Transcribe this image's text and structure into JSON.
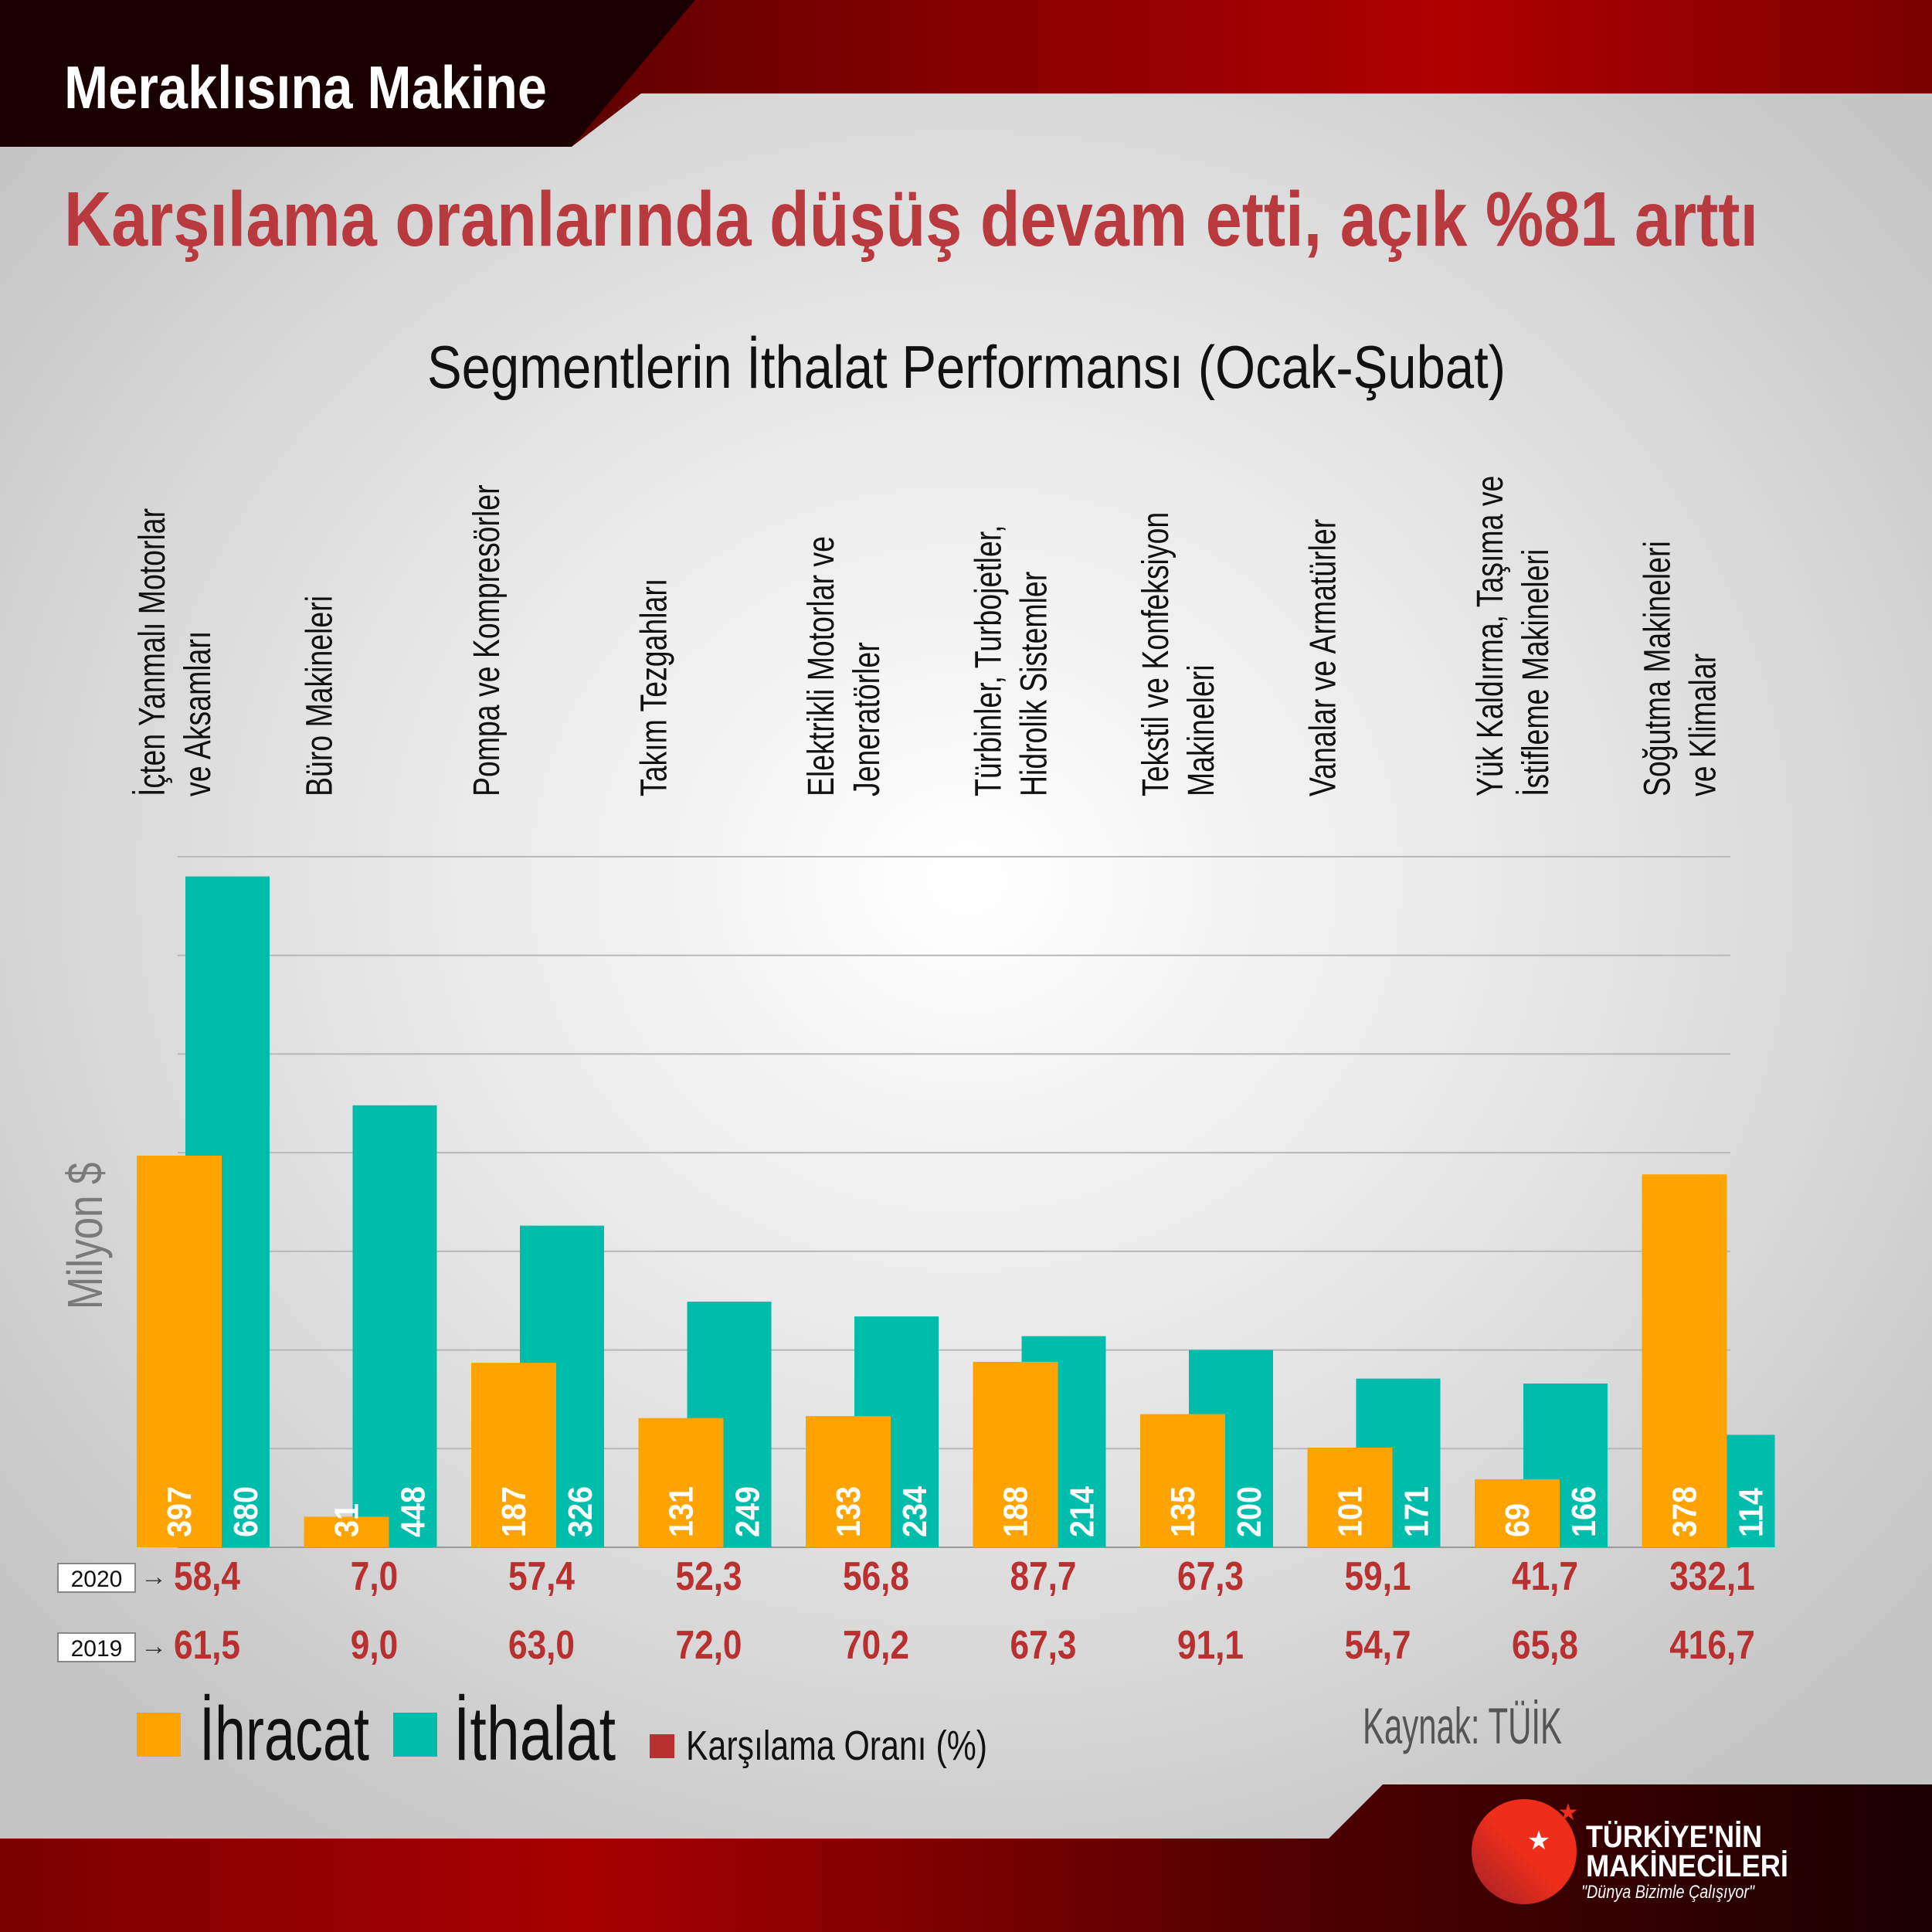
{
  "header": {
    "brand": "Meraklısına Makine"
  },
  "headline": "Karşılama oranlarında düşüş devam etti, açık %81 arttı",
  "colors": {
    "export": "#ffa300",
    "import": "#00bcaa",
    "ratio": "#b8302f",
    "headline": "#b83a3f"
  },
  "chart_data": {
    "type": "bar",
    "title": "Segmentlerin İthalat Performansı (Ocak-Şubat)",
    "ylabel": "Milyon $",
    "ylim": [
      0,
      700
    ],
    "grid": true,
    "categories": [
      [
        "İçten Yanmalı Motorlar",
        "ve Aksamları"
      ],
      [
        "Büro Makineleri"
      ],
      [
        "Pompa ve Kompresörler"
      ],
      [
        "Takım Tezgahları"
      ],
      [
        "Elektrikli Motorlar ve",
        "Jeneratörler"
      ],
      [
        "Türbinler, Turbojetler,",
        "Hidrolik Sistemler"
      ],
      [
        "Tekstil ve Konfeksiyon",
        "Makineleri"
      ],
      [
        "Vanalar ve Armatürler"
      ],
      [
        "Yük Kaldırma, Taşıma ve",
        "İstifleme Makineleri"
      ],
      [
        "Soğutma Makineleri",
        "ve Klimalar"
      ]
    ],
    "series": [
      {
        "name": "İhracat",
        "values": [
          397,
          31,
          187,
          131,
          133,
          188,
          135,
          101,
          69,
          378
        ]
      },
      {
        "name": "İthalat",
        "values": [
          680,
          448,
          326,
          249,
          234,
          214,
          200,
          171,
          166,
          114
        ]
      }
    ],
    "coverage_ratio": {
      "name": "Karşılama Oranı (%)",
      "rows": [
        {
          "year": "2020",
          "values": [
            "58,4",
            "7,0",
            "57,4",
            "52,3",
            "56,8",
            "87,7",
            "67,3",
            "59,1",
            "41,7",
            "332,1"
          ]
        },
        {
          "year": "2019",
          "values": [
            "61,5",
            "9,0",
            "63,0",
            "72,0",
            "70,2",
            "67,3",
            "91,1",
            "54,7",
            "65,8",
            "416,7"
          ]
        }
      ]
    },
    "legend": {
      "position": "bottom-left"
    }
  },
  "arrow": "→",
  "source": "Kaynak: TÜİK",
  "logo": {
    "line1": "TÜRKİYE'NİN",
    "line2": "MAKİNECİLERİ",
    "tagline": "\"Dünya Bizimle Çalışıyor\""
  }
}
